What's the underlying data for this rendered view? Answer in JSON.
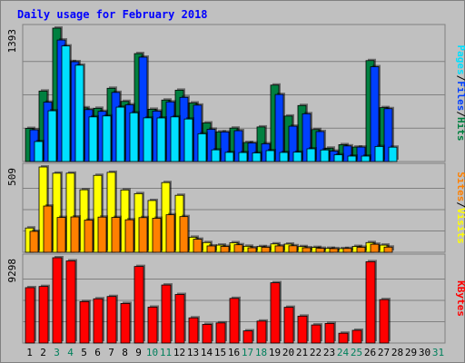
{
  "chart_data": {
    "type": "bar",
    "title": "Daily usage for February 2018",
    "categories": [
      "1",
      "2",
      "3",
      "4",
      "5",
      "6",
      "7",
      "8",
      "9",
      "10",
      "11",
      "12",
      "13",
      "14",
      "15",
      "16",
      "17",
      "18",
      "19",
      "20",
      "21",
      "22",
      "23",
      "24",
      "25",
      "26",
      "27",
      "28",
      "29",
      "30",
      "31"
    ],
    "weekend_days": [
      "3",
      "4",
      "10",
      "11",
      "17",
      "18",
      "24",
      "25",
      "31"
    ],
    "panels": [
      {
        "id": "hits-files-pages",
        "max_label": "1393",
        "ymax": 1393,
        "legend": [
          "Pages",
          "Files",
          "Hits"
        ],
        "series": [
          {
            "name": "Hits",
            "color": "#008040",
            "values": [
              346,
              736,
              1393,
              1044,
              561,
              556,
              765,
              628,
              1127,
              546,
              642,
              745,
              612,
              403,
              310,
              349,
              199,
              361,
              798,
              475,
              585,
              334,
              140,
              176,
              151,
              1054,
              563,
              0,
              0,
              0,
              0
            ]
          },
          {
            "name": "Files",
            "color": "#0040ff",
            "values": [
              331,
              620,
              1269,
              1042,
              542,
              524,
              722,
              593,
              1090,
              527,
              623,
              670,
              589,
              337,
              309,
              322,
              194,
              186,
              700,
              369,
              499,
              313,
              109,
              163,
              151,
              990,
              552,
              0,
              0,
              0,
              0
            ]
          },
          {
            "name": "Pages",
            "color": "#00e0ff",
            "values": [
              209,
              530,
              1207,
              1006,
              466,
              476,
              568,
              509,
              456,
              455,
              466,
              444,
              290,
              122,
              96,
              94,
              90,
              114,
              95,
              98,
              133,
              121,
              71,
              57,
              57,
              157,
              150,
              0,
              0,
              0,
              0
            ]
          }
        ]
      },
      {
        "id": "visits-sites",
        "max_label": "509",
        "ymax": 509,
        "legend": [
          "Sites",
          "Visits"
        ],
        "series": [
          {
            "name": "Visits",
            "color": "#ffff00",
            "values": [
              145,
              509,
              472,
              472,
              373,
              459,
              477,
              372,
              350,
              309,
              416,
              340,
              90,
              58,
              43,
              57,
              36,
              34,
              50,
              49,
              34,
              29,
              24,
              22,
              35,
              58,
              43,
              0,
              0,
              0,
              0
            ]
          },
          {
            "name": "Sites",
            "color": "#ff8000",
            "values": [
              125,
              276,
              208,
              211,
              192,
              210,
              208,
              194,
              207,
              203,
              224,
              213,
              78,
              38,
              35,
              45,
              27,
              30,
              38,
              39,
              27,
              24,
              22,
              23,
              30,
              48,
              31,
              0,
              0,
              0,
              0
            ]
          }
        ]
      },
      {
        "id": "kbytes",
        "max_label": "9298",
        "ymax": 9298,
        "legend": [
          "KBytes"
        ],
        "series": [
          {
            "name": "KBytes",
            "color": "#ff0000",
            "values": [
              6035,
              6166,
              9298,
              8952,
              4514,
              4820,
              5073,
              4312,
              8346,
              3912,
              6325,
              5291,
              2743,
              2030,
              2193,
              4865,
              1327,
              2390,
              6570,
              3896,
              2932,
              1970,
              2134,
              1070,
              1387,
              8864,
              4733,
              0,
              0,
              0,
              0
            ]
          }
        ]
      }
    ],
    "colors": {
      "background": "#c0c0c0",
      "frame": "#808080",
      "title": "#0000ff",
      "weekday_label": "#000000",
      "weekend_label": "#00805c",
      "bar_outline": "#000000",
      "shadow": "#000000"
    }
  }
}
